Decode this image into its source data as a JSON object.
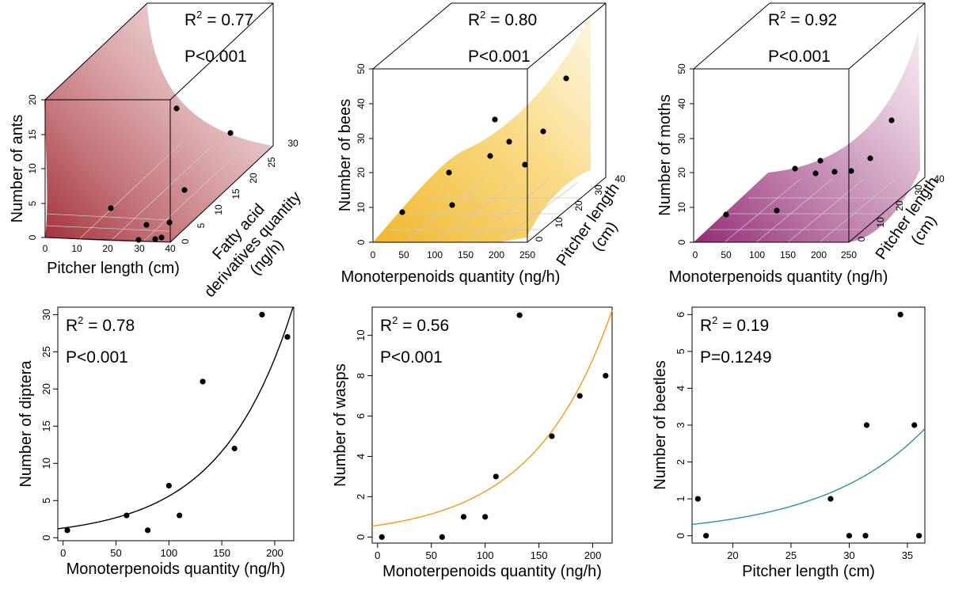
{
  "chart_data": [
    {
      "type": "scatter3d",
      "stats": {
        "r2_label": "R",
        "r2_sup": "2",
        "r2_value": " = 0.77",
        "p_text": "P<0.001"
      },
      "xlabel": "Pitcher length (cm)",
      "ylabel": "Number of ants",
      "zlabel_lines": [
        "Fatty acid",
        "derivatives quantity",
        "(ng/h)"
      ],
      "xticks": [
        "0",
        "10",
        "20",
        "30",
        "40"
      ],
      "yticks": [
        "0",
        "5",
        "10",
        "15",
        "20"
      ],
      "zticks": [
        "0",
        "5",
        "10",
        "15",
        "20",
        "25",
        "30"
      ],
      "xlim": [
        0,
        40
      ],
      "ylim": [
        0,
        20
      ],
      "zlim": [
        0,
        30
      ],
      "surface_color": "#a8323a",
      "points": [
        {
          "x": 17,
          "z": 6,
          "y": 7
        },
        {
          "x": 30,
          "z": 1,
          "y": 0
        },
        {
          "x": 28,
          "z": 5,
          "y": 2
        },
        {
          "x": 33,
          "z": 2,
          "y": 0
        },
        {
          "x": 34,
          "z": 5,
          "y": 0.5
        },
        {
          "x": 34,
          "z": 9,
          "y": 2
        },
        {
          "x": 32,
          "z": 16,
          "y": 6
        },
        {
          "x": 22,
          "z": 17,
          "y": 16
        },
        {
          "x": 36,
          "z": 26,
          "y": 15
        }
      ]
    },
    {
      "type": "scatter3d",
      "stats": {
        "r2_label": "R",
        "r2_sup": "2",
        "r2_value": " = 0.80",
        "p_text": "P<0.001"
      },
      "xlabel": "Monoterpenoids quantity (ng/h)",
      "ylabel": "Number of bees",
      "zlabel_lines": [
        "Pitcher length",
        "(cm)"
      ],
      "xticks": [
        "0",
        "50",
        "100",
        "150",
        "200",
        "250"
      ],
      "yticks": [
        "0",
        "10",
        "20",
        "30",
        "40",
        "50"
      ],
      "zticks": [
        "0",
        "10",
        "20",
        "30",
        "40"
      ],
      "xlim": [
        0,
        250
      ],
      "ylim": [
        0,
        50
      ],
      "zlim": [
        0,
        40
      ],
      "surface_color": "#f5c242",
      "points": [
        {
          "x": 50,
          "z": 5,
          "y": 7
        },
        {
          "x": 130,
          "z": 10,
          "y": 8
        },
        {
          "x": 120,
          "z": 20,
          "y": 18
        },
        {
          "x": 160,
          "z": 25,
          "y": 22
        },
        {
          "x": 150,
          "z": 33,
          "y": 28
        },
        {
          "x": 190,
          "z": 28,
          "y": 25
        },
        {
          "x": 220,
          "z": 32,
          "y": 17
        },
        {
          "x": 220,
          "z": 30,
          "y": 28
        },
        {
          "x": 215,
          "z": 36,
          "y": 37
        }
      ]
    },
    {
      "type": "scatter3d",
      "stats": {
        "r2_label": "R",
        "r2_sup": "2",
        "r2_value": " = 0.92",
        "p_text": "P<0.001"
      },
      "xlabel": "Monoterpenoids quantity (ng/h)",
      "ylabel": "Number of moths",
      "zlabel_lines": [
        "Pitcher length",
        "(cm)"
      ],
      "xticks": [
        "0",
        "50",
        "100",
        "150",
        "200",
        "250"
      ],
      "yticks": [
        "0",
        "10",
        "20",
        "30",
        "40",
        "50"
      ],
      "zticks": [
        "0",
        "10",
        "20",
        "30",
        "40"
      ],
      "xlim": [
        0,
        250
      ],
      "ylim": [
        0,
        50
      ],
      "zlim": [
        0,
        40
      ],
      "surface_color": "#9e2a7a",
      "points": [
        {
          "x": 50,
          "z": 5,
          "y": 5
        },
        {
          "x": 130,
          "z": 10,
          "y": 5
        },
        {
          "x": 140,
          "z": 30,
          "y": 16
        },
        {
          "x": 170,
          "z": 28,
          "y": 14
        },
        {
          "x": 180,
          "z": 30,
          "y": 17
        },
        {
          "x": 200,
          "z": 32,
          "y": 14
        },
        {
          "x": 230,
          "z": 30,
          "y": 13
        },
        {
          "x": 235,
          "z": 36,
          "y": 16
        },
        {
          "x": 240,
          "z": 38,
          "y": 27
        }
      ]
    },
    {
      "type": "scatter",
      "stats": {
        "r2_label": "R",
        "r2_sup": "2",
        "r2_value": " = 0.78",
        "p_text": "P<0.001"
      },
      "xlabel": "Monoterpenoids quantity (ng/h)",
      "ylabel": "Number of diptera",
      "xticks": [
        0,
        50,
        100,
        150,
        200
      ],
      "yticks": [
        0,
        5,
        10,
        15,
        20,
        25,
        30
      ],
      "xlim": [
        -5,
        218
      ],
      "ylim": [
        -0.4,
        31
      ],
      "line_color": "#000000",
      "curve": {
        "a": 1.3,
        "b": 0.0146
      },
      "x": [
        4,
        60,
        80,
        100,
        110,
        132,
        162,
        188,
        212
      ],
      "y": [
        1,
        3,
        1,
        7,
        3,
        21,
        12,
        30,
        27
      ]
    },
    {
      "type": "scatter",
      "stats": {
        "r2_label": "R",
        "r2_sup": "2",
        "r2_value": " = 0.56",
        "p_text": "P<0.001"
      },
      "xlabel": "Monoterpenoids quantity (ng/h)",
      "ylabel": "Number of wasps",
      "xticks": [
        0,
        50,
        100,
        150,
        200
      ],
      "yticks": [
        0,
        2,
        4,
        6,
        8,
        10
      ],
      "xlim": [
        -5,
        218
      ],
      "ylim": [
        -0.3,
        11.4
      ],
      "line_color": "#f39c12",
      "curve": {
        "a": 0.58,
        "b": 0.0136
      },
      "x": [
        4,
        60,
        80,
        100,
        110,
        132,
        162,
        188,
        212
      ],
      "y": [
        0,
        0,
        1,
        1,
        3,
        11,
        5,
        7,
        8
      ]
    },
    {
      "type": "scatter",
      "stats": {
        "r2_label": "R",
        "r2_sup": "2",
        "r2_value": " = 0.19",
        "p_text": "P=0.1249"
      },
      "xlabel": "Pitcher length (cm)",
      "ylabel": "Number of beetles",
      "xticks": [
        20,
        25,
        30,
        35
      ],
      "yticks": [
        0,
        1,
        2,
        3,
        4,
        5,
        6
      ],
      "xlim": [
        16.5,
        36.5
      ],
      "ylim": [
        -0.2,
        6.2
      ],
      "line_color": "#2e8fa6",
      "curve": {
        "a": 0.048,
        "b": 0.1124
      },
      "x": [
        17,
        17.7,
        28.4,
        30,
        31.4,
        31.5,
        34.4,
        35.6,
        36
      ],
      "y": [
        1,
        0,
        1,
        0,
        0,
        3,
        6,
        3,
        0
      ]
    }
  ]
}
